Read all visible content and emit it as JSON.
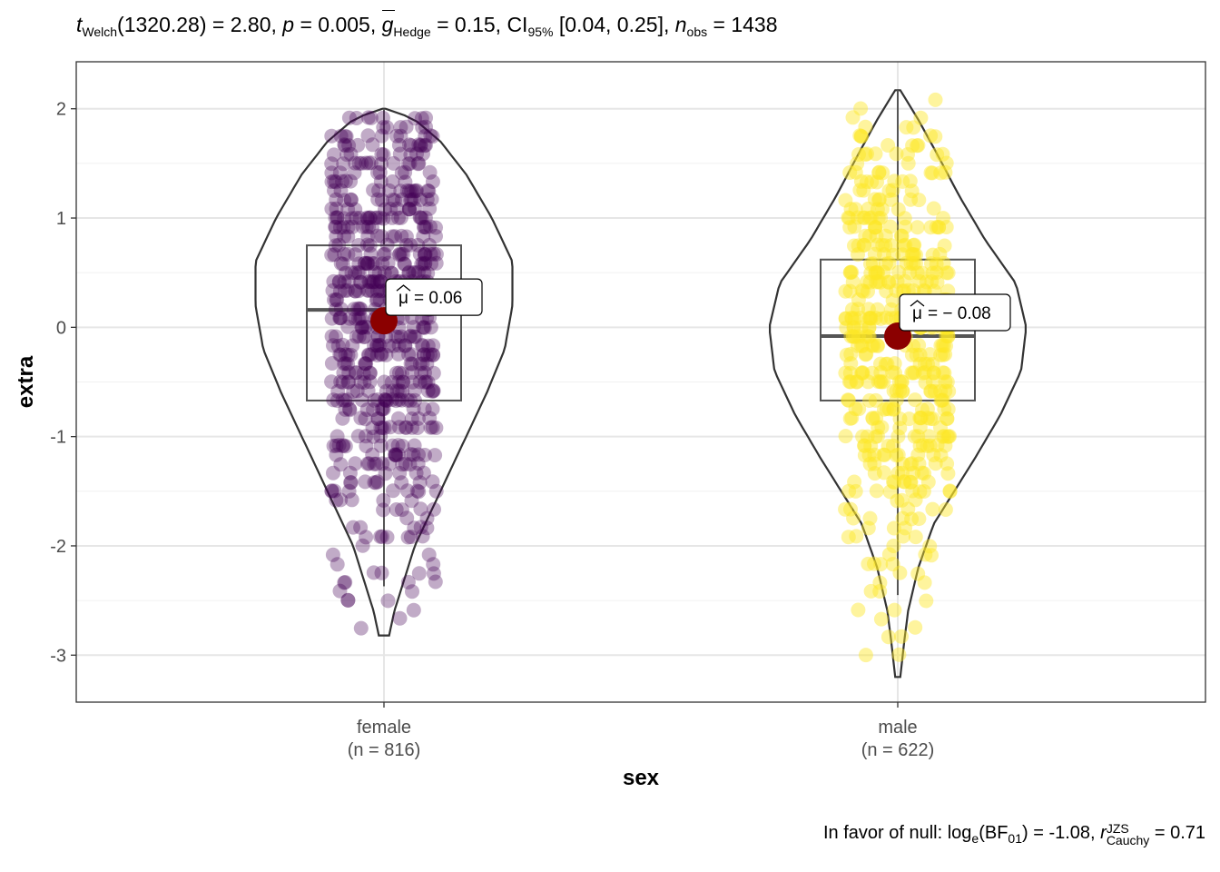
{
  "subtitle": {
    "t_sym": "t",
    "t_sub": "Welch",
    "t_part": "(1320.28) = 2.80, ",
    "p_sym": "p",
    "p_part": " = 0.005, ",
    "g_sym": "g",
    "g_sub": "Hedge",
    "g_part": " = 0.15, CI",
    "ci_sub": "95%",
    "ci_part": " [0.04, 0.25], ",
    "n_sym": "n",
    "n_sub": "obs",
    "n_part": " = 1438"
  },
  "caption": {
    "prefix": "In favor of null: log",
    "log_sub": "e",
    "bf_open": "(BF",
    "bf_sub": "01",
    "bf_part": ") = -1.08, ",
    "r_sym": "r",
    "r_sup": "JZS",
    "r_sub": "Cauchy",
    "r_part": " = 0.71"
  },
  "chart_data": {
    "type": "violin-box-jitter",
    "xlabel": "sex",
    "ylabel": "extra",
    "ylim": [
      -3.43,
      2.43
    ],
    "yticks": [
      -3,
      -2,
      -1,
      0,
      1,
      2
    ],
    "ytick_labels": [
      "-3",
      "-2",
      "-1",
      "0",
      "1",
      "2"
    ],
    "grid": true,
    "groups": [
      {
        "name": "female",
        "n_label": "(n = 816)",
        "color": "#440154",
        "mean": 0.06,
        "mean_label": "= 0.06",
        "box": {
          "q1": -0.67,
          "median": 0.16,
          "q3": 0.75,
          "whisker_low": -2.37,
          "whisker_high": 2.0
        },
        "violin": {
          "min": -2.82,
          "max": 2.0,
          "max_half_width": 0.25,
          "profile": [
            [
              -2.82,
              0.01
            ],
            [
              -2.6,
              0.02
            ],
            [
              -2.3,
              0.04
            ],
            [
              -2.0,
              0.06
            ],
            [
              -1.7,
              0.09
            ],
            [
              -1.3,
              0.13
            ],
            [
              -1.0,
              0.16
            ],
            [
              -0.6,
              0.2
            ],
            [
              -0.2,
              0.235
            ],
            [
              0.2,
              0.25
            ],
            [
              0.6,
              0.25
            ],
            [
              1.0,
              0.21
            ],
            [
              1.4,
              0.16
            ],
            [
              1.7,
              0.11
            ],
            [
              1.9,
              0.06
            ],
            [
              2.0,
              0.01
            ]
          ]
        }
      },
      {
        "name": "male",
        "n_label": "(n = 622)",
        "color": "#FDE725",
        "mean": -0.08,
        "mean_label": "= − 0.08",
        "box": {
          "q1": -0.67,
          "median": -0.08,
          "q3": 0.62,
          "whisker_low": -2.45,
          "whisker_high": 2.17
        },
        "violin": {
          "min": -3.2,
          "max": 2.17,
          "max_half_width": 0.25,
          "profile": [
            [
              -3.2,
              0.005
            ],
            [
              -2.9,
              0.012
            ],
            [
              -2.6,
              0.02
            ],
            [
              -2.2,
              0.04
            ],
            [
              -1.8,
              0.07
            ],
            [
              -1.5,
              0.11
            ],
            [
              -1.2,
              0.15
            ],
            [
              -0.8,
              0.2
            ],
            [
              -0.4,
              0.24
            ],
            [
              0.0,
              0.25
            ],
            [
              0.4,
              0.23
            ],
            [
              0.8,
              0.17
            ],
            [
              1.2,
              0.12
            ],
            [
              1.6,
              0.075
            ],
            [
              1.9,
              0.04
            ],
            [
              2.17,
              0.005
            ]
          ]
        }
      }
    ],
    "mean_symbol": "μ"
  }
}
